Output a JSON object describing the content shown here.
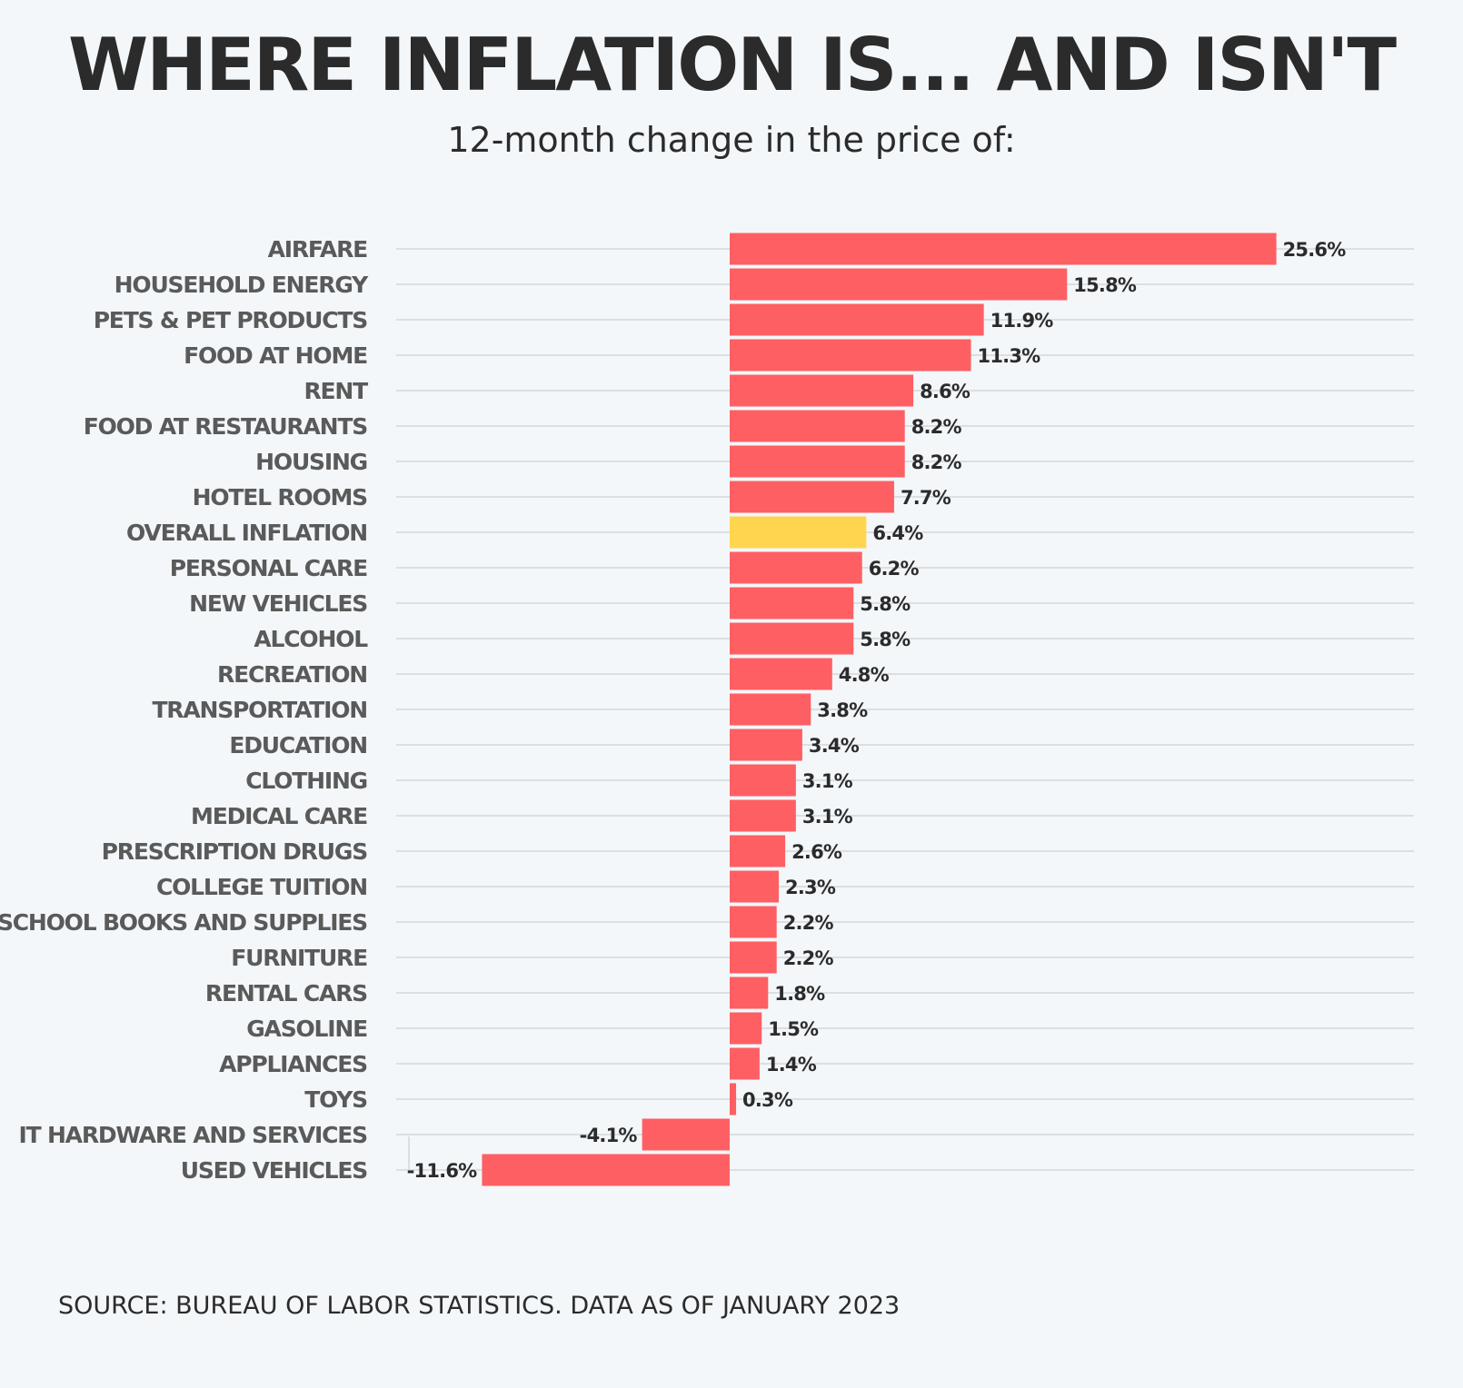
{
  "header": {
    "title": "WHERE INFLATION IS... AND ISN'T",
    "subtitle": "12-month change in the price of:"
  },
  "footer": {
    "source": "SOURCE: BUREAU OF LABOR STATISTICS. DATA AS OF JANUARY 2023"
  },
  "colors": {
    "bar": "#fe5f63",
    "highlight": "#ffd54f",
    "gridline": "#dcdfe2",
    "background": "#f3f7fa"
  },
  "chart_data": {
    "type": "bar",
    "orientation": "horizontal",
    "title": "WHERE INFLATION IS... AND ISN'T",
    "subtitle": "12-month change in the price of:",
    "unit": "%",
    "highlight_category": "OVERALL INFLATION",
    "xlim": [
      -13,
      28
    ],
    "grid": true,
    "categories": [
      "AIRFARE",
      "HOUSEHOLD ENERGY",
      "PETS & PET PRODUCTS",
      "FOOD AT HOME",
      "RENT",
      "FOOD AT RESTAURANTS",
      "HOUSING",
      "HOTEL ROOMS",
      "OVERALL INFLATION",
      "PERSONAL CARE",
      "NEW VEHICLES",
      "ALCOHOL",
      "RECREATION",
      "TRANSPORTATION",
      "EDUCATION",
      "CLOTHING",
      "MEDICAL CARE",
      "PRESCRIPTION DRUGS",
      "COLLEGE TUITION",
      "SCHOOL BOOKS AND SUPPLIES",
      "FURNITURE",
      "RENTAL CARS",
      "GASOLINE",
      "APPLIANCES",
      "TOYS",
      "IT HARDWARE AND SERVICES",
      "USED VEHICLES"
    ],
    "values": [
      25.6,
      15.8,
      11.9,
      11.3,
      8.6,
      8.2,
      8.2,
      7.7,
      6.4,
      6.2,
      5.8,
      5.8,
      4.8,
      3.8,
      3.4,
      3.1,
      3.1,
      2.6,
      2.3,
      2.2,
      2.2,
      1.8,
      1.5,
      1.4,
      0.3,
      -4.1,
      -11.6
    ],
    "value_labels": [
      "25.6%",
      "15.8%",
      "11.9%",
      "11.3%",
      "8.6%",
      "8.2%",
      "8.2%",
      "7.7%",
      "6.4%",
      "6.2%",
      "5.8%",
      "5.8%",
      "4.8%",
      "3.8%",
      "3.4%",
      "3.1%",
      "3.1%",
      "2.6%",
      "2.3%",
      "2.2%",
      "2.2%",
      "1.8%",
      "1.5%",
      "1.4%",
      "0.3%",
      "-4.1%",
      "-11.6%"
    ]
  }
}
